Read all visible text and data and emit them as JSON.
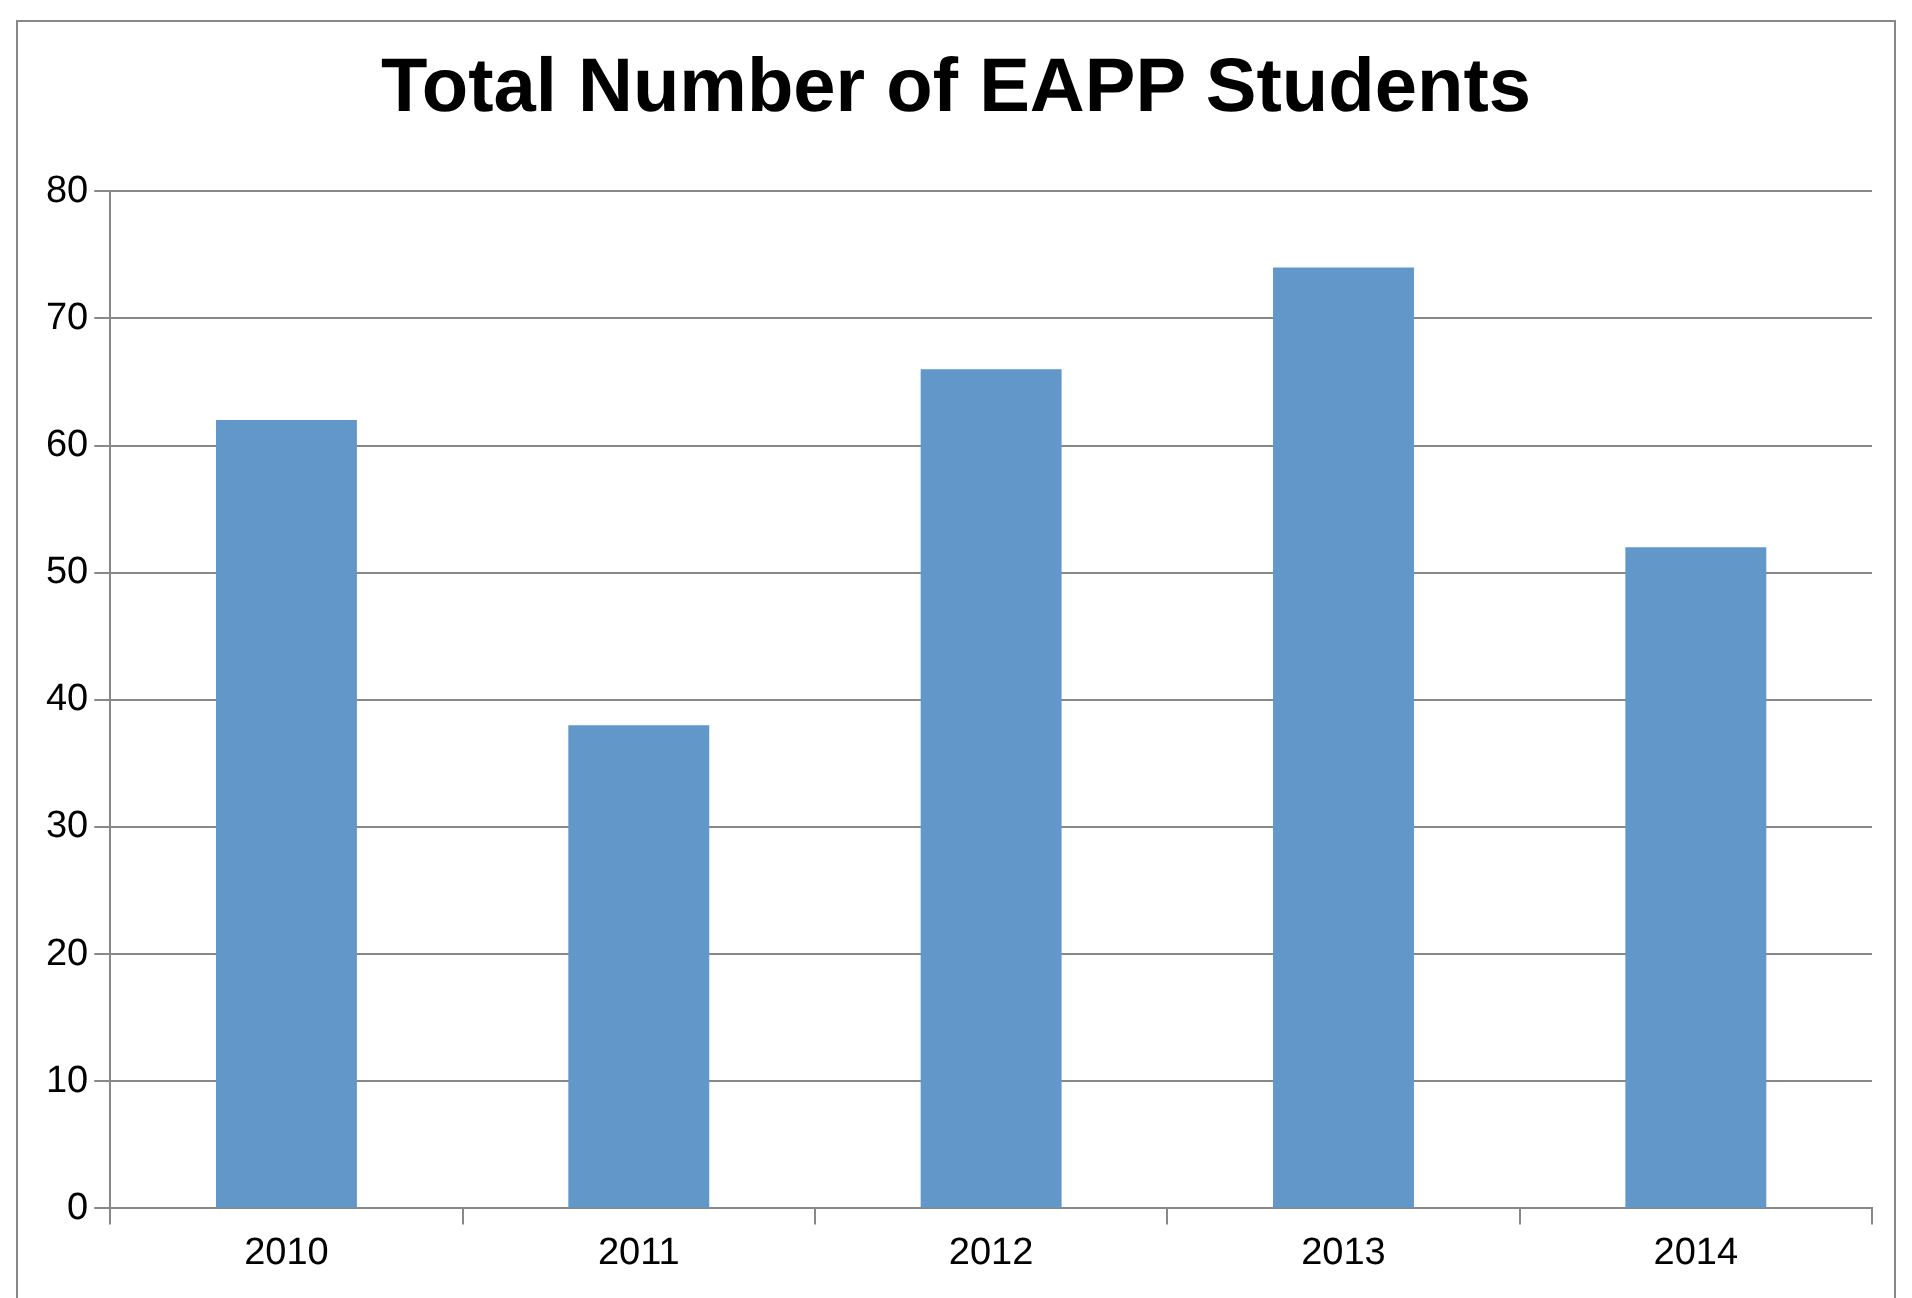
{
  "chart_data": {
    "type": "bar",
    "title": "Total Number of EAPP Students",
    "categories": [
      "2010",
      "2011",
      "2012",
      "2013",
      "2014"
    ],
    "values": [
      62,
      38,
      66,
      74,
      52
    ],
    "color": "#6197c9",
    "ylim": [
      0,
      80
    ],
    "yticks": [
      0,
      10,
      20,
      30,
      40,
      50,
      60,
      70,
      80
    ],
    "grid": "y",
    "legend": false
  }
}
